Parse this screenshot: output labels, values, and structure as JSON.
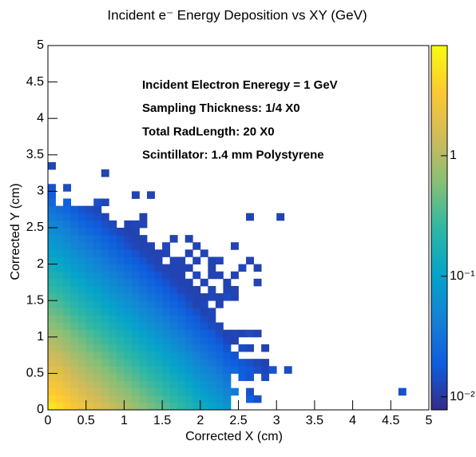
{
  "chart_data": {
    "type": "heatmap",
    "title": "Incident e⁻ Energy Deposition vs XY (GeV)",
    "x_label": "Corrected X (cm)",
    "y_label": "Corrected Y (cm)",
    "annotations": [
      "Incident Electron Eneregy = 1 GeV",
      "Sampling Thickness: 1/4 X0",
      "Total RadLength: 20 X0",
      "Scintillator: 1.4 mm Polystyrene"
    ],
    "xlim": [
      0,
      5
    ],
    "ylim": [
      0,
      5
    ],
    "xticks": [
      0,
      0.5,
      1,
      1.5,
      2,
      2.5,
      3,
      3.5,
      4,
      4.5,
      5
    ],
    "yticks": [
      0,
      0.5,
      1,
      1.5,
      2,
      2.5,
      3,
      3.5,
      4,
      4.5,
      5
    ],
    "zlim": [
      0.0078,
      8.2
    ],
    "zlog": true,
    "zticks": [
      {
        "value": 0.01,
        "label": "10⁻²"
      },
      {
        "value": 0.1,
        "label": "10⁻¹"
      },
      1
    ],
    "xbins": [
      0,
      0.1,
      0.2,
      0.3,
      0.4,
      0.5,
      0.6,
      0.7,
      0.8,
      0.9,
      1,
      1.1,
      1.2,
      1.3,
      1.4,
      1.5,
      1.6,
      1.7,
      1.8,
      1.9,
      2,
      2.1,
      2.2,
      2.3,
      2.4,
      2.5,
      2.6,
      2.7,
      2.8,
      2.9,
      3,
      3.1,
      3.2,
      3.3,
      3.4,
      3.5,
      3.6,
      3.7,
      3.8,
      3.9,
      4,
      4.1,
      4.2,
      4.3,
      4.4,
      4.5,
      4.6,
      4.7
    ],
    "ybins": [
      0,
      0.1,
      0.2,
      0.3,
      0.4,
      0.5,
      0.6,
      0.7,
      0.8,
      0.9,
      1,
      1.1,
      1.2,
      1.3,
      1.4,
      1.5,
      1.6,
      1.7,
      1.8,
      1.9,
      2,
      2.1,
      2.2,
      2.3,
      2.4,
      2.5,
      2.6,
      2.7,
      2.8,
      2.9,
      3,
      3.1,
      3.2,
      3.3,
      3.4
    ],
    "z": [
      [
        5.6,
        4.6,
        3.7,
        3.0,
        2.5,
        2.1,
        1.8,
        1.5,
        1.3,
        1.05,
        0.9,
        0.75,
        0.62,
        0.52,
        0.44,
        0.36,
        0.3,
        0.25,
        0.2,
        0.16,
        0.13,
        0.11,
        0.09,
        0.07
      ],
      [
        4.4,
        3.8,
        3.1,
        2.5,
        2.1,
        1.7,
        1.5,
        1.25,
        1.0,
        0.87,
        0.75,
        0.62,
        0.51,
        0.43,
        0.37,
        0.3,
        0.25,
        0.21,
        0.17,
        0.13,
        0.11,
        0.09,
        0.075,
        0.058,
        null,
        null,
        0.02,
        0.015
      ],
      [
        3.5,
        3.0,
        2.6,
        2.1,
        1.7,
        1.45,
        1.25,
        1.0,
        0.86,
        0.72,
        0.62,
        0.52,
        0.43,
        0.36,
        0.3,
        0.25,
        0.21,
        0.17,
        0.14,
        0.11,
        0.09,
        0.076,
        0.062,
        0.048,
        0.04,
        null,
        0.015,
        null,
        null,
        null,
        null,
        null,
        null,
        null,
        null,
        null,
        null,
        null,
        null,
        null,
        null,
        null,
        null,
        null,
        null,
        null,
        0.015
      ],
      [
        2.9,
        2.6,
        2.1,
        1.7,
        1.45,
        1.2,
        1.05,
        0.87,
        0.72,
        0.61,
        0.52,
        0.43,
        0.36,
        0.3,
        0.26,
        0.21,
        0.17,
        0.145,
        0.116,
        0.093,
        0.075,
        0.064,
        0.052,
        0.04
      ],
      [
        2.4,
        2.1,
        1.8,
        1.45,
        1.2,
        1.0,
        0.86,
        0.72,
        0.6,
        0.5,
        0.43,
        0.36,
        0.3,
        0.25,
        0.21,
        0.17,
        0.144,
        0.12,
        0.096,
        0.077,
        0.062,
        0.053,
        0.043,
        0.034,
        null,
        0.02,
        0.016,
        null,
        0.014
      ],
      [
        2.0,
        1.8,
        1.5,
        1.2,
        1.0,
        0.84,
        0.72,
        0.6,
        0.5,
        0.42,
        0.36,
        0.3,
        0.25,
        0.21,
        0.18,
        0.144,
        0.12,
        0.1,
        0.08,
        0.064,
        0.052,
        0.044,
        0.036,
        0.028,
        0.025,
        0.02,
        0.018,
        0.015,
        0.013,
        0.016,
        null,
        0.014
      ],
      [
        1.65,
        1.45,
        1.2,
        1.0,
        0.83,
        0.69,
        0.6,
        0.5,
        0.41,
        0.35,
        0.3,
        0.25,
        0.2,
        0.17,
        0.145,
        0.12,
        0.1,
        0.083,
        0.066,
        0.053,
        0.043,
        0.036,
        0.03,
        0.023,
        0.02,
        0.017,
        0.015,
        0.013,
        0.012
      ],
      [
        1.4,
        1.25,
        1.05,
        0.84,
        0.7,
        0.59,
        0.5,
        0.42,
        0.35,
        0.29,
        0.25,
        0.21,
        0.17,
        0.146,
        0.123,
        0.1,
        0.084,
        0.07,
        0.056,
        0.045,
        0.036,
        0.031,
        0.025,
        0.02,
        0.016
      ],
      [
        1.15,
        1.0,
        0.85,
        0.69,
        0.58,
        0.48,
        0.41,
        0.35,
        0.29,
        0.24,
        0.21,
        0.17,
        0.14,
        0.12,
        0.1,
        0.083,
        0.069,
        0.058,
        0.046,
        0.037,
        0.03,
        0.025,
        0.021,
        0.016,
        null,
        0.014,
        0.013,
        null,
        0.012
      ],
      [
        0.95,
        0.84,
        0.7,
        0.57,
        0.48,
        0.4,
        0.34,
        0.29,
        0.24,
        0.2,
        0.17,
        0.14,
        0.118,
        0.1,
        0.084,
        0.068,
        0.057,
        0.048,
        0.038,
        0.03,
        0.025,
        0.021,
        0.017,
        0.013,
        0.012
      ],
      [
        0.8,
        0.7,
        0.59,
        0.48,
        0.4,
        0.34,
        0.29,
        0.24,
        0.2,
        0.17,
        0.144,
        0.12,
        0.1,
        0.083,
        0.07,
        0.058,
        0.048,
        0.04,
        0.032,
        0.026,
        0.021,
        0.018,
        0.014,
        0.012,
        0.013,
        0.012,
        0.014,
        0.012
      ],
      [
        0.65,
        0.57,
        0.48,
        0.39,
        0.33,
        0.27,
        0.23,
        0.2,
        0.16,
        0.14,
        0.117,
        0.1,
        0.08,
        0.068,
        0.057,
        0.047,
        0.039,
        0.033,
        0.026,
        0.021,
        0.017,
        0.014,
        0.013
      ],
      [
        0.55,
        0.48,
        0.41,
        0.33,
        0.28,
        0.23,
        0.2,
        0.165,
        0.138,
        0.116,
        0.1,
        0.083,
        0.068,
        0.057,
        0.048,
        0.04,
        0.033,
        0.028,
        0.022,
        0.018,
        0.014,
        0.013
      ],
      [
        0.45,
        0.4,
        0.33,
        0.27,
        0.23,
        0.19,
        0.16,
        0.135,
        0.113,
        0.095,
        0.081,
        0.068,
        0.056,
        0.047,
        0.04,
        0.032,
        0.027,
        0.023,
        0.018,
        0.015,
        0.012,
        0.013
      ],
      [
        0.38,
        0.33,
        0.28,
        0.23,
        0.19,
        0.16,
        0.137,
        0.114,
        0.095,
        0.08,
        0.068,
        0.057,
        0.047,
        0.04,
        0.033,
        0.027,
        0.023,
        0.019,
        0.015,
        0.012,
        0.013,
        null,
        0.012
      ],
      [
        0.32,
        0.28,
        0.23,
        0.19,
        0.16,
        0.13,
        0.113,
        0.095,
        0.079,
        0.066,
        0.057,
        0.047,
        0.039,
        0.033,
        0.028,
        0.023,
        0.019,
        0.016,
        0.013,
        0.012,
        0.012,
        0.013,
        0.012,
        0.014,
        0.012
      ],
      [
        0.26,
        0.23,
        0.19,
        0.156,
        0.13,
        0.11,
        0.094,
        0.078,
        0.065,
        0.055,
        0.047,
        0.039,
        0.032,
        0.027,
        0.023,
        0.019,
        0.016,
        0.013,
        0.012,
        0.012,
        null,
        0.013,
        null,
        0.012,
        0.012
      ],
      [
        0.22,
        0.19,
        0.16,
        0.13,
        0.11,
        0.092,
        0.079,
        0.066,
        0.055,
        0.046,
        0.04,
        0.033,
        0.027,
        0.023,
        0.019,
        0.016,
        0.013,
        0.012,
        0.012,
        null,
        0.012,
        null,
        null,
        0.012,
        null,
        null,
        null,
        0.012
      ],
      [
        0.18,
        0.16,
        0.13,
        0.108,
        0.09,
        0.076,
        0.065,
        0.054,
        0.045,
        0.038,
        0.032,
        0.027,
        0.022,
        0.019,
        0.016,
        0.013,
        0.012,
        0.012,
        null,
        0.013,
        null,
        0.012,
        0.012,
        null,
        0.012
      ],
      [
        0.15,
        0.13,
        0.11,
        0.09,
        0.075,
        0.063,
        0.054,
        0.045,
        0.038,
        0.032,
        0.027,
        0.023,
        0.019,
        0.016,
        0.013,
        0.012,
        0.012,
        0.012,
        0.012,
        null,
        null,
        0.012,
        null,
        null,
        null,
        0.013,
        null,
        0.012
      ],
      [
        0.125,
        0.11,
        0.09,
        0.075,
        0.063,
        0.053,
        0.045,
        0.038,
        0.031,
        0.026,
        0.022,
        0.019,
        0.016,
        0.013,
        0.012,
        null,
        0.012,
        0.012,
        null,
        0.012,
        null,
        0.012,
        0.013,
        null,
        null,
        null,
        0.012
      ],
      [
        0.1,
        0.092,
        0.078,
        0.063,
        0.053,
        0.044,
        0.038,
        0.032,
        0.026,
        0.022,
        0.019,
        0.016,
        0.013,
        0.012,
        0.012,
        0.012,
        null,
        null,
        0.012,
        null,
        0.012
      ],
      [
        0.085,
        0.075,
        0.063,
        0.051,
        0.043,
        0.036,
        0.031,
        0.026,
        0.021,
        0.018,
        0.015,
        0.013,
        0.012,
        0.012,
        null,
        0.013,
        null,
        null,
        null,
        0.012,
        null,
        null,
        null,
        null,
        0.012
      ],
      [
        0.075,
        0.066,
        0.055,
        0.045,
        0.038,
        0.032,
        0.027,
        0.023,
        0.019,
        0.016,
        0.013,
        0.012,
        0.012,
        null,
        null,
        null,
        0.012,
        null,
        0.012
      ],
      [
        0.06,
        0.053,
        0.044,
        0.036,
        0.03,
        0.025,
        0.022,
        0.018,
        0.015,
        0.013,
        0.012,
        0.012
      ],
      [
        0.05,
        0.044,
        0.037,
        0.03,
        0.025,
        0.021,
        0.018,
        0.015,
        0.013,
        null,
        0.012,
        0.013,
        0.012
      ],
      [
        0.04,
        0.035,
        0.03,
        0.024,
        0.02,
        0.017,
        0.015,
        0.013,
        null,
        null,
        null,
        null,
        0.012,
        null,
        null,
        null,
        null,
        null,
        null,
        null,
        null,
        null,
        null,
        null,
        null,
        null,
        0.012,
        null,
        null,
        null,
        0.012
      ],
      [
        0.032,
        0.028,
        0.024,
        0.019,
        0.016,
        0.014,
        0.013
      ],
      [
        0.025,
        null,
        0.02,
        null,
        null,
        null,
        0.015,
        0.013
      ],
      [
        0.02,
        null,
        null,
        null,
        null,
        null,
        null,
        null,
        null,
        null,
        null,
        0.012,
        null,
        0.012
      ],
      [
        0.016,
        null,
        0.014
      ],
      [],
      [
        null,
        null,
        null,
        null,
        null,
        null,
        null,
        0.012
      ],
      [
        0.013
      ]
    ]
  }
}
